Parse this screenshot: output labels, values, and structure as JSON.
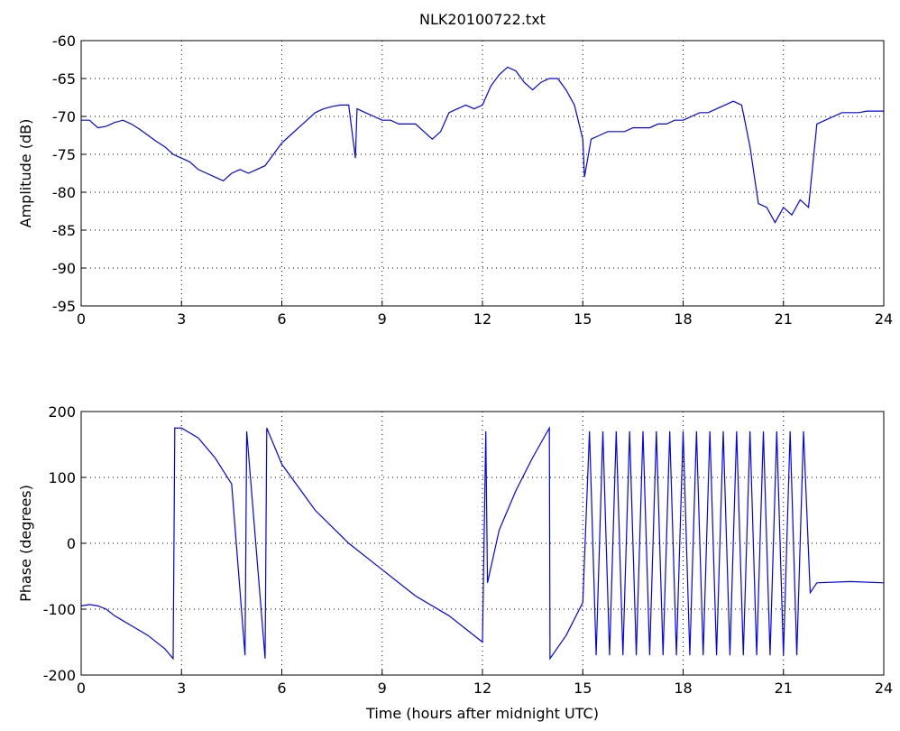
{
  "chart_data": [
    {
      "type": "line",
      "title": "NLK20100722.txt",
      "ylabel": "Amplitude (dB)",
      "color": "#0000ff",
      "grid": true,
      "xlim": [
        0,
        24
      ],
      "xticks": [
        0,
        3,
        6,
        9,
        12,
        15,
        18,
        21,
        24
      ],
      "ylim": [
        -95,
        -60
      ],
      "yticks": [
        -95,
        -90,
        -85,
        -80,
        -75,
        -70,
        -65,
        -60
      ],
      "x": [
        0,
        0.25,
        0.5,
        0.75,
        1,
        1.25,
        1.5,
        1.75,
        2,
        2.25,
        2.5,
        2.75,
        3,
        3.25,
        3.5,
        3.75,
        4,
        4.25,
        4.5,
        4.75,
        5,
        5.25,
        5.5,
        5.75,
        6,
        6.25,
        6.5,
        6.75,
        7,
        7.25,
        7.5,
        7.75,
        8,
        8.2,
        8.25,
        8.5,
        8.75,
        9,
        9.25,
        9.5,
        9.75,
        10,
        10.25,
        10.5,
        10.75,
        11,
        11.25,
        11.5,
        11.75,
        12,
        12.25,
        12.5,
        12.75,
        13,
        13.25,
        13.5,
        13.75,
        14,
        14.25,
        14.5,
        14.75,
        15,
        15.05,
        15.25,
        15.5,
        15.75,
        16,
        16.25,
        16.5,
        16.75,
        17,
        17.25,
        17.5,
        17.75,
        18,
        18.25,
        18.5,
        18.75,
        19,
        19.25,
        19.5,
        19.75,
        20,
        20.25,
        20.5,
        20.75,
        21,
        21.25,
        21.5,
        21.75,
        22,
        22.25,
        22.5,
        22.75,
        23,
        23.25,
        23.5,
        23.75,
        24
      ],
      "y": [
        -70.5,
        -70.5,
        -71.5,
        -71.3,
        -70.8,
        -70.5,
        -71,
        -71.7,
        -72.5,
        -73.3,
        -74,
        -75,
        -75.5,
        -76,
        -77,
        -77.5,
        -78,
        -78.5,
        -77.5,
        -77,
        -77.5,
        -77,
        -76.5,
        -75,
        -73.5,
        -72.5,
        -71.5,
        -70.5,
        -69.5,
        -69,
        -68.7,
        -68.5,
        -68.5,
        -75.5,
        -69,
        -69.5,
        -70,
        -70.5,
        -70.5,
        -71,
        -71,
        -71,
        -72,
        -73,
        -72,
        -69.5,
        -69,
        -68.5,
        -69,
        -68.5,
        -66,
        -64.5,
        -63.5,
        -64,
        -65.5,
        -66.5,
        -65.5,
        -65,
        -65,
        -66.5,
        -68.5,
        -73,
        -78,
        -73,
        -72.5,
        -72,
        -72,
        -72,
        -71.5,
        -71.5,
        -71.5,
        -71,
        -71,
        -70.5,
        -70.5,
        -70,
        -69.5,
        -69.5,
        -69,
        -68.5,
        -68,
        -68.5,
        -74,
        -81.5,
        -82,
        -84,
        -82,
        -83,
        -81,
        -82,
        -71,
        -70.5,
        -70,
        -69.5,
        -69.5,
        -69.5,
        -69.3,
        -69.3,
        -69.3
      ]
    },
    {
      "type": "line",
      "ylabel": "Phase (degrees)",
      "xlabel": "Time (hours after midnight UTC)",
      "color": "#0000ff",
      "grid": true,
      "xlim": [
        0,
        24
      ],
      "xticks": [
        0,
        3,
        6,
        9,
        12,
        15,
        18,
        21,
        24
      ],
      "ylim": [
        -200,
        200
      ],
      "yticks": [
        -200,
        -100,
        0,
        100,
        200
      ],
      "x": [
        0,
        0.25,
        0.5,
        0.75,
        1,
        1.5,
        2,
        2.5,
        2.75,
        2.8,
        3,
        3.5,
        4,
        4.5,
        4.9,
        4.95,
        5.5,
        5.55,
        6,
        7,
        8,
        9,
        10,
        11,
        11.5,
        12,
        12.1,
        12.15,
        12.5,
        13,
        13.5,
        14,
        14.02,
        14.5,
        15,
        15.2,
        15.4,
        15.6,
        15.8,
        16,
        16.2,
        16.4,
        16.6,
        16.8,
        17,
        17.2,
        17.4,
        17.6,
        17.8,
        18,
        18.2,
        18.4,
        18.6,
        18.8,
        19,
        19.2,
        19.4,
        19.6,
        19.8,
        20,
        20.2,
        20.4,
        20.6,
        20.8,
        21,
        21.2,
        21.4,
        21.6,
        21.8,
        22,
        23,
        24
      ],
      "y": [
        -95,
        -93,
        -95,
        -100,
        -110,
        -125,
        -140,
        -160,
        -175,
        175,
        175,
        160,
        130,
        90,
        -170,
        170,
        -175,
        175,
        120,
        50,
        0,
        -40,
        -80,
        -110,
        -130,
        -150,
        170,
        -60,
        20,
        80,
        130,
        175,
        -175,
        -140,
        -90,
        170,
        -170,
        170,
        -170,
        170,
        -170,
        170,
        -170,
        170,
        -170,
        170,
        -170,
        170,
        -170,
        170,
        -170,
        170,
        -170,
        170,
        -170,
        170,
        -170,
        170,
        -170,
        170,
        -170,
        170,
        -170,
        170,
        -170,
        170,
        -170,
        170,
        -75,
        -60,
        -58,
        -60
      ]
    }
  ]
}
